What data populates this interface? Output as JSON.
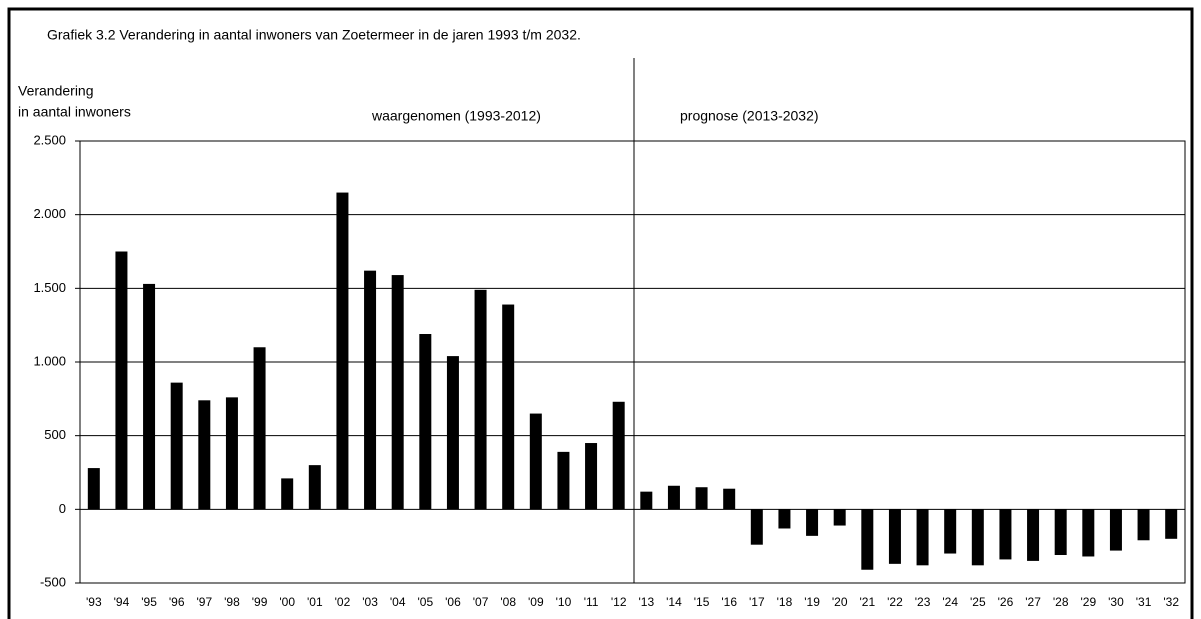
{
  "chart_data": {
    "type": "bar",
    "title": "Grafiek 3.2  Verandering in aantal inwoners van Zoetermeer in de jaren 1993 t/m 2032.",
    "ylabel": [
      "Verandering",
      "in aantal inwoners"
    ],
    "annotations": [
      "waargenomen (1993-2012)",
      "prognose (2013-2032)"
    ],
    "categories": [
      "'93",
      "'94",
      "'95",
      "'96",
      "'97",
      "'98",
      "'99",
      "'00",
      "'01",
      "'02",
      "'03",
      "'04",
      "'05",
      "'06",
      "'07",
      "'08",
      "'09",
      "'10",
      "'11",
      "'12",
      "'13",
      "'14",
      "'15",
      "'16",
      "'17",
      "'18",
      "'19",
      "'20",
      "'21",
      "'22",
      "'23",
      "'24",
      "'25",
      "'26",
      "'27",
      "'28",
      "'29",
      "'30",
      "'31",
      "'32"
    ],
    "values": [
      280,
      1750,
      1530,
      860,
      740,
      760,
      1100,
      210,
      300,
      2150,
      1620,
      1590,
      1190,
      1040,
      1490,
      1390,
      650,
      390,
      450,
      730,
      120,
      160,
      150,
      140,
      -240,
      -130,
      -180,
      -110,
      -410,
      -370,
      -380,
      -300,
      -380,
      -340,
      -350,
      -310,
      -320,
      -280,
      -210,
      -200
    ],
    "color": "#000000",
    "ylim": [
      -500,
      2500
    ],
    "yticks": [
      -500,
      0,
      500,
      {
        "value": 1000,
        "label": "1.000"
      },
      {
        "value": 1500,
        "label": "1.500"
      },
      {
        "value": 2000,
        "label": "2.000"
      },
      {
        "value": 2500,
        "label": "2.500"
      }
    ],
    "grid": true
  }
}
